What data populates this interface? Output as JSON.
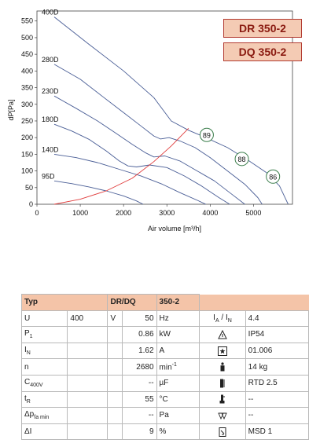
{
  "chart_data": {
    "type": "line",
    "xlabel": "Air volume [m³/h]",
    "ylabel": "dP[Pa]",
    "xlim": [
      0,
      5900
    ],
    "ylim": [
      0,
      580
    ],
    "xticks": [
      0,
      1000,
      2000,
      3000,
      4000,
      5000
    ],
    "yticks": [
      0,
      50,
      100,
      150,
      200,
      250,
      300,
      350,
      400,
      450,
      500,
      550
    ],
    "grid": false,
    "series": [
      {
        "name": "400D",
        "color": "#4a5e96",
        "x": [
          400,
          1200,
          2000,
          2700,
          3100,
          3500,
          3900,
          4400,
          4900,
          5300,
          5600,
          5800
        ],
        "y": [
          562,
          480,
          400,
          320,
          250,
          222,
          200,
          170,
          130,
          95,
          55,
          0
        ]
      },
      {
        "name": "280D",
        "color": "#4a5e96",
        "x": [
          400,
          1000,
          1500,
          2000,
          2400,
          2700,
          2850,
          3050,
          3300,
          3650,
          4000,
          4400,
          4800,
          5100,
          5200
        ],
        "y": [
          420,
          375,
          325,
          275,
          235,
          205,
          196,
          200,
          190,
          170,
          140,
          100,
          60,
          20,
          0
        ]
      },
      {
        "name": "230D",
        "color": "#4a5e96",
        "x": [
          400,
          900,
          1400,
          1800,
          2200,
          2500,
          2700,
          2950,
          3300,
          3700,
          4100,
          4500,
          4800
        ],
        "y": [
          325,
          288,
          250,
          215,
          180,
          155,
          142,
          145,
          130,
          100,
          70,
          30,
          0
        ]
      },
      {
        "name": "180D",
        "color": "#4a5e96",
        "x": [
          400,
          800,
          1200,
          1600,
          1900,
          2100,
          2300,
          2600,
          3000,
          3400,
          3800,
          4200,
          4450
        ],
        "y": [
          240,
          220,
          195,
          160,
          130,
          115,
          112,
          118,
          110,
          85,
          55,
          20,
          0
        ]
      },
      {
        "name": "140D",
        "color": "#4a5e96",
        "x": [
          400,
          900,
          1400,
          1900,
          2400,
          2900,
          3300,
          3700,
          3900
        ],
        "y": [
          150,
          140,
          125,
          105,
          85,
          60,
          35,
          12,
          0
        ]
      },
      {
        "name": "95D",
        "color": "#4a5e96",
        "x": [
          400,
          800,
          1200,
          1600,
          2000,
          2300,
          2450
        ],
        "y": [
          70,
          62,
          52,
          40,
          25,
          10,
          0
        ]
      },
      {
        "name": "",
        "color": "#e03b3b",
        "x": [
          400,
          1000,
          1600,
          2200,
          2700,
          3100,
          3500
        ],
        "y": [
          0,
          15,
          40,
          78,
          128,
          175,
          228
        ]
      }
    ],
    "efficiency_markers": [
      {
        "label": "89",
        "x": 3920,
        "y": 208
      },
      {
        "label": "88",
        "x": 4730,
        "y": 136
      },
      {
        "label": "86",
        "x": 5450,
        "y": 83
      }
    ],
    "models": [
      "DR 350-2",
      "DQ 350-2"
    ]
  },
  "specs": {
    "header": {
      "typ": "Typ",
      "model": "DR/DQ",
      "size": "350-2"
    },
    "rows": [
      {
        "l1": "U",
        "l2": "400",
        "l3": "V",
        "value": "50",
        "unit": "Hz",
        "icon": "ratio-ia-in-label",
        "r": "4.4",
        "rlabel": "I_A / I_N"
      },
      {
        "l1": "P",
        "l1sub": "1",
        "value": "0.86",
        "unit": "kW",
        "icon": "protection-class-icon",
        "r": "IP54"
      },
      {
        "l1": "I",
        "l1sub": "N",
        "value": "1.62",
        "unit": "A",
        "icon": "star-box-icon",
        "r": "01.006"
      },
      {
        "l1": "n",
        "value": "2680",
        "unit": "min",
        "unit_sup": "-1",
        "icon": "weight-icon",
        "r": "14 kg"
      },
      {
        "l1": "C",
        "l1sub": "400V",
        "value": "--",
        "unit": "µF",
        "icon": "thermistor-icon",
        "r": "RTD 2.5"
      },
      {
        "l1": "t",
        "l1sub": "R",
        "value": "55",
        "unit": "°C",
        "icon": "thermometer-icon",
        "r": "--"
      },
      {
        "l1": "Δp",
        "l1sub": "fa min",
        "value": "--",
        "unit": "Pa",
        "icon": "filter-icon",
        "r": "--"
      },
      {
        "l1": "ΔI",
        "value": "9",
        "unit": "%",
        "icon": "switch-icon",
        "r": "MSD 1"
      }
    ]
  }
}
